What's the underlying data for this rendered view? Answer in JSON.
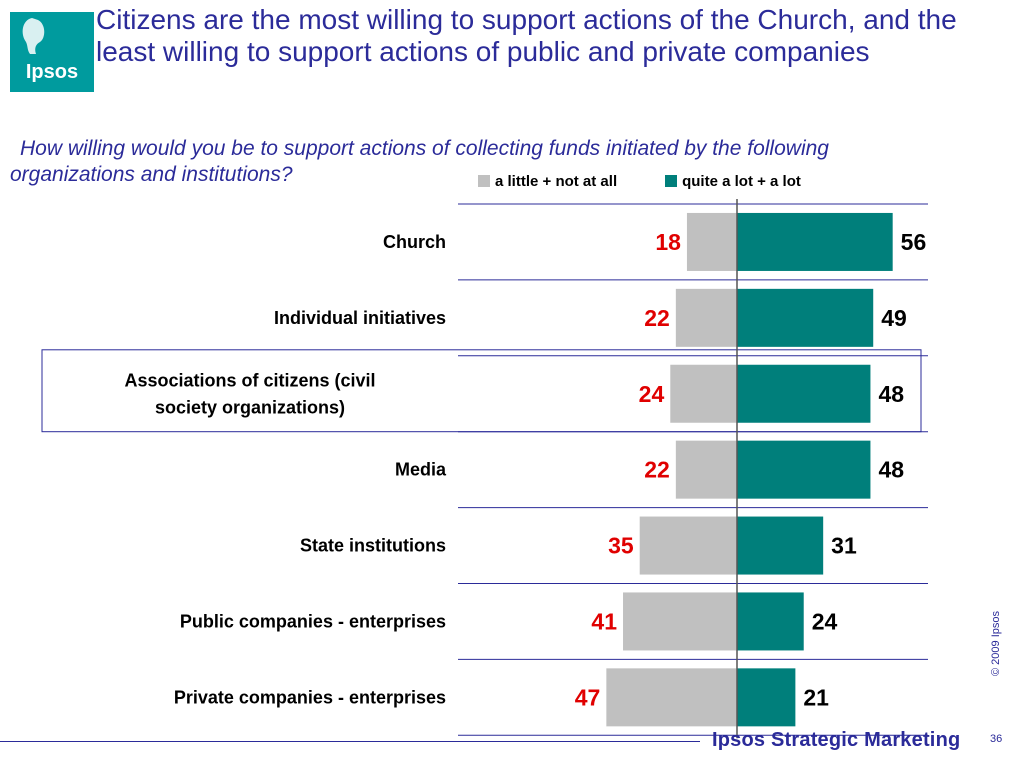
{
  "logo": {
    "text": "Ipsos",
    "color": "#009b9e"
  },
  "header": {
    "title": "Citizens are the most willing to support actions of the Church, and the least willing to support actions of public and private companies",
    "subtitle_line1": "How willing would you be to support actions of collecting funds initiated by the following",
    "subtitle_line2": "organizations and institutions?"
  },
  "chart_data": {
    "type": "bar",
    "orientation": "horizontal-diverging",
    "categories": [
      "Church",
      "Individual initiatives",
      "Associations of citizens (civil society organizations)",
      "Media",
      "State institutions",
      "Public companies - enterprises",
      "Private companies - enterprises"
    ],
    "series": [
      {
        "name": "a little + not at all",
        "values": [
          18,
          22,
          24,
          22,
          35,
          41,
          47
        ],
        "color": "#c0c0c0",
        "label_color": "#e00000"
      },
      {
        "name": "quite a lot + a lot",
        "values": [
          56,
          49,
          48,
          48,
          31,
          24,
          21
        ],
        "color": "#007f7b",
        "label_color": "#000000"
      }
    ],
    "highlighted_category": "Associations of citizens (civil society organizations)"
  },
  "footer": {
    "copyright": "© 2009 Ipsos",
    "brand": "Ipsos Strategic Marketing",
    "page_number": "36"
  }
}
